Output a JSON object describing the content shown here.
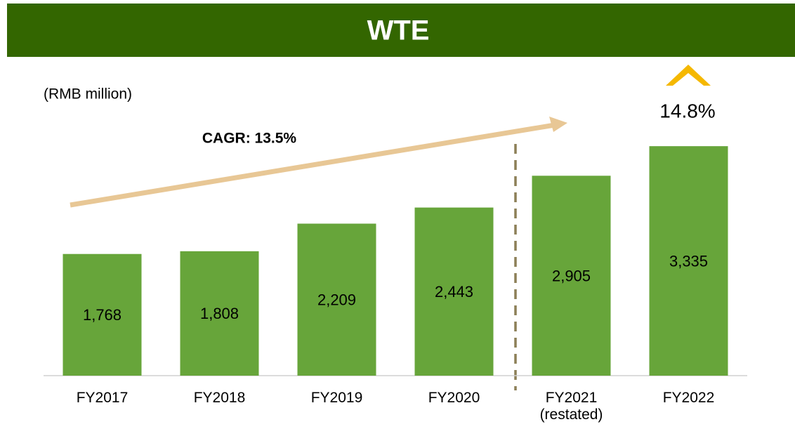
{
  "chart_data": {
    "type": "bar",
    "title": "WTE",
    "unit_label": "(RMB million)",
    "cagr_label": "CAGR: 13.5%",
    "growth_label": "14.8%",
    "categories": [
      "FY2017",
      "FY2018",
      "FY2019",
      "FY2020",
      "FY2021\n(restated)",
      "FY2022"
    ],
    "values": [
      1768,
      1808,
      2209,
      2443,
      2905,
      3335
    ],
    "value_labels": [
      "1,768",
      "1,808",
      "2,209",
      "2,443",
      "2,905",
      "3,335"
    ],
    "color": "#67a53a",
    "ylim": [
      0,
      3500
    ]
  }
}
